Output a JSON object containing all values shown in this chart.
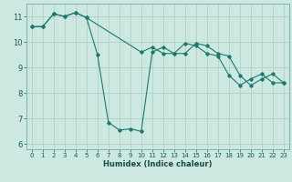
{
  "xlabel": "Humidex (Indice chaleur)",
  "background_color": "#cce8e0",
  "line_color": "#1a7a6e",
  "grid_color": "#aaccc4",
  "xlim": [
    -0.5,
    23.5
  ],
  "ylim": [
    5.8,
    11.5
  ],
  "yticks": [
    6,
    7,
    8,
    9,
    10,
    11
  ],
  "xticks": [
    0,
    1,
    2,
    3,
    4,
    5,
    6,
    7,
    8,
    9,
    10,
    11,
    12,
    13,
    14,
    15,
    16,
    17,
    18,
    19,
    20,
    21,
    22,
    23
  ],
  "series1_x": [
    0,
    1,
    2,
    3,
    4,
    5,
    6,
    7,
    8,
    9,
    10,
    11,
    12,
    13,
    14,
    15,
    16,
    17,
    18,
    19,
    20,
    21,
    22,
    23
  ],
  "series1_y": [
    10.6,
    10.6,
    11.1,
    11.0,
    11.15,
    10.95,
    9.5,
    6.85,
    6.55,
    6.6,
    6.5,
    9.6,
    9.8,
    9.55,
    9.55,
    9.95,
    9.85,
    9.55,
    9.45,
    8.7,
    8.3,
    8.55,
    8.75,
    8.4
  ],
  "series2_x": [
    0,
    1,
    2,
    3,
    4,
    5,
    10,
    11,
    12,
    13,
    14,
    15,
    16,
    17,
    18,
    19,
    20,
    21,
    22,
    23
  ],
  "series2_y": [
    10.6,
    10.6,
    11.1,
    11.0,
    11.15,
    10.95,
    9.6,
    9.8,
    9.55,
    9.55,
    9.95,
    9.85,
    9.55,
    9.45,
    8.7,
    8.3,
    8.55,
    8.75,
    8.4,
    8.4
  ]
}
